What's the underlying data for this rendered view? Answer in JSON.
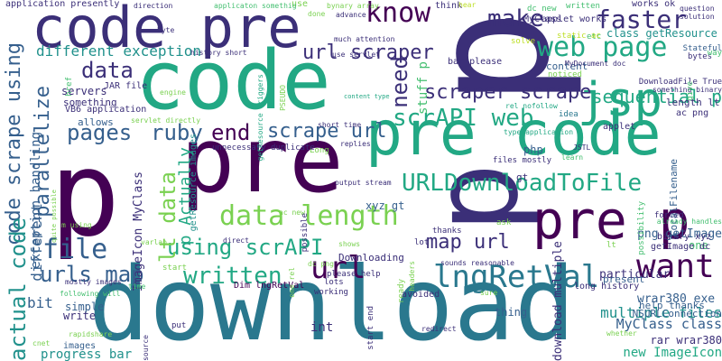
{
  "palette": {
    "dark_purple": "#440154",
    "indigo": "#3b2f78",
    "blue": "#355f8d",
    "teal": "#2a788e",
    "sea": "#21918c",
    "green": "#22a884",
    "leaf": "#44bf70",
    "lime": "#7ad151",
    "yellow": "#bddf26",
    "bright": "#fde725"
  },
  "words": [
    {
      "id": "download",
      "text": "download",
      "color": "teal"
    },
    {
      "id": "code",
      "text": "code",
      "color": "green"
    },
    {
      "id": "pre-1",
      "text": "pre",
      "color": "dark_purple"
    },
    {
      "id": "p-1",
      "text": "p",
      "color": "dark_purple"
    },
    {
      "id": "p-2",
      "text": "p",
      "color": "indigo"
    },
    {
      "id": "p-3",
      "text": "p",
      "color": "indigo"
    },
    {
      "id": "code-pre",
      "text": "code pre",
      "color": "indigo"
    },
    {
      "id": "pre-code",
      "text": "pre code",
      "color": "green"
    },
    {
      "id": "pre-p",
      "text": "pre p",
      "color": "dark_purple"
    },
    {
      "id": "jsp",
      "text": "jsp",
      "color": "green"
    },
    {
      "id": "want",
      "text": "want",
      "color": "dark_purple"
    },
    {
      "id": "web-page",
      "text": "web page",
      "color": "green"
    },
    {
      "id": "lngretval",
      "text": "lngRetVal",
      "color": "teal"
    },
    {
      "id": "urldownloadtofile",
      "text": "URLDownloadToFile",
      "color": "green"
    },
    {
      "id": "data-length",
      "text": "data length",
      "color": "lime"
    },
    {
      "id": "know",
      "text": "know",
      "color": "dark_purple"
    },
    {
      "id": "faster",
      "text": "faster",
      "color": "indigo"
    },
    {
      "id": "make",
      "text": "make",
      "color": "indigo"
    },
    {
      "id": "scrapi-web",
      "text": "scrAPI web",
      "color": "green"
    },
    {
      "id": "scraper-scrape",
      "text": "scraper scrape",
      "color": "indigo"
    },
    {
      "id": "url-scraper",
      "text": "url scraper",
      "color": "indigo"
    },
    {
      "id": "written",
      "text": "written",
      "color": "green"
    },
    {
      "id": "url",
      "text": "url",
      "color": "dark_purple"
    },
    {
      "id": "file",
      "text": "file",
      "color": "blue"
    },
    {
      "id": "pages",
      "text": "pages",
      "color": "blue"
    },
    {
      "id": "ruby",
      "text": "ruby",
      "color": "blue"
    },
    {
      "id": "end",
      "text": "end",
      "color": "dark_purple"
    },
    {
      "id": "scrape-url",
      "text": "scrape url",
      "color": "blue"
    },
    {
      "id": "data",
      "text": "data",
      "color": "indigo"
    },
    {
      "id": "using-scrapi",
      "text": "using scrAPI",
      "color": "green"
    },
    {
      "id": "urls-map",
      "text": "urls map",
      "color": "blue"
    },
    {
      "id": "map-url",
      "text": "map url",
      "color": "indigo"
    },
    {
      "id": "need",
      "text": "need",
      "color": "indigo"
    },
    {
      "id": "sequential-p",
      "text": "sequential p",
      "color": "green"
    },
    {
      "id": "different-exception",
      "text": "different exception",
      "color": "sea"
    },
    {
      "id": "code-scrape-using",
      "text": "code scrape using",
      "color": "blue"
    },
    {
      "id": "actual-code",
      "text": "actual code",
      "color": "sea"
    },
    {
      "id": "parallelize",
      "text": "parallelize",
      "color": "blue"
    },
    {
      "id": "lt-data",
      "text": "lt data",
      "color": "lime"
    },
    {
      "id": "p-actually",
      "text": "p Actually",
      "color": "green"
    },
    {
      "id": "stuff-p",
      "text": "stuff p",
      "color": "leaf"
    },
    {
      "id": "multiple-files",
      "text": "multiple files",
      "color": "sea"
    },
    {
      "id": "myclass-class",
      "text": "MyClass class",
      "color": "blue"
    },
    {
      "id": "new-imageicon",
      "text": "new ImageIcon",
      "color": "green"
    },
    {
      "id": "progress-bar",
      "text": "progress bar",
      "color": "sea"
    },
    {
      "id": "rar-wrar380",
      "text": "rar wrar380",
      "color": "indigo"
    },
    {
      "id": "wrar380-exe",
      "text": "wrar380 exe",
      "color": "blue"
    },
    {
      "id": "nsurlconnection",
      "text": "NSURLConnection",
      "color": "blue"
    },
    {
      "id": "help-thanks",
      "text": "help thanks",
      "color": "blue"
    },
    {
      "id": "png-getimage",
      "text": "png getImage",
      "color": "blue"
    },
    {
      "id": "length-lt",
      "text": "length lt",
      "color": "indigo"
    },
    {
      "id": "imageicon-myclass",
      "text": "ImageIcon MyClass",
      "color": "indigo"
    },
    {
      "id": "different",
      "text": "different",
      "color": "blue"
    },
    {
      "id": "bit",
      "text": "bit",
      "color": "blue"
    },
    {
      "id": "exception-handling",
      "text": "exception handling",
      "color": "blue"
    },
    {
      "id": "class-getresource",
      "text": "class getResource",
      "color": "sea"
    },
    {
      "id": "xyz-gt",
      "text": "xyz gt",
      "color": "blue"
    },
    {
      "id": "downloading",
      "text": "Downloading",
      "color": "indigo"
    },
    {
      "id": "dim-lngretval",
      "text": "Dim lngRetVal",
      "color": "dark_purple"
    },
    {
      "id": "download-multiple",
      "text": "download multiple",
      "color": "indigo"
    },
    {
      "id": "servers",
      "text": "servers",
      "color": "indigo"
    },
    {
      "id": "something",
      "text": "something",
      "color": "indigo"
    },
    {
      "id": "allows",
      "text": "allows",
      "color": "blue"
    },
    {
      "id": "write",
      "text": "write",
      "color": "indigo"
    },
    {
      "id": "simple",
      "text": "simple",
      "color": "blue"
    },
    {
      "id": "images",
      "text": "images",
      "color": "blue"
    },
    {
      "id": "php",
      "text": "php",
      "color": "blue"
    },
    {
      "id": "content",
      "text": "content",
      "color": "blue"
    },
    {
      "id": "thing",
      "text": "thing",
      "color": "blue"
    },
    {
      "id": "int",
      "text": "int",
      "color": "indigo"
    },
    {
      "id": "one",
      "text": "one",
      "color": "leaf"
    },
    {
      "id": "applet",
      "text": "applet",
      "color": "indigo"
    },
    {
      "id": "applet-works",
      "text": "applet works",
      "color": "indigo"
    },
    {
      "id": "works-ok",
      "text": "works ok",
      "color": "indigo"
    },
    {
      "id": "stateful",
      "text": "Stateful",
      "color": "blue"
    },
    {
      "id": "bytes",
      "text": "bytes",
      "color": "indigo"
    },
    {
      "id": "ac-png",
      "text": "ac png",
      "color": "indigo"
    },
    {
      "id": "particular",
      "text": "particular",
      "color": "indigo"
    },
    {
      "id": "present",
      "text": "present",
      "color": "blue"
    },
    {
      "id": "long-history",
      "text": "long history",
      "color": "indigo"
    },
    {
      "id": "jar-file",
      "text": "JAR file",
      "color": "indigo"
    },
    {
      "id": "vb6-application",
      "text": "VB6 application",
      "color": "indigo"
    },
    {
      "id": "getresource-images",
      "text": "getResource images",
      "color": "sea"
    },
    {
      "id": "application-presently",
      "text": "application presently",
      "color": "indigo"
    },
    {
      "id": "myclass",
      "text": "MyClass",
      "color": "indigo"
    },
    {
      "id": "getimage-dc",
      "text": "getImage dc",
      "color": "indigo"
    },
    {
      "id": "binary-xyz",
      "text": "binary xyz",
      "color": "indigo"
    },
    {
      "id": "gt",
      "text": "gt",
      "color": "indigo"
    },
    {
      "id": "idea",
      "text": "idea",
      "color": "teal"
    },
    {
      "id": "localfilename",
      "text": "LocalFilename",
      "color": "blue"
    },
    {
      "id": "downloadfile-true",
      "text": "DownloadFile True",
      "color": "indigo"
    },
    {
      "id": "something-binary",
      "text": "something binary",
      "color": "indigo"
    },
    {
      "id": "already-handles",
      "text": "already handles",
      "color": "leaf"
    },
    {
      "id": "forced",
      "text": "forced",
      "color": "indigo"
    },
    {
      "id": "possibility",
      "text": "possibility",
      "color": "leaf"
    },
    {
      "id": "question-solution",
      "text": "question\nsolution",
      "color": "indigo"
    },
    {
      "id": "way",
      "text": "way",
      "color": "leaf"
    },
    {
      "id": "give",
      "text": "give",
      "color": "leaf"
    },
    {
      "id": "w-etc",
      "text": "etc",
      "color": "leaf"
    },
    {
      "id": "static-ac",
      "text": "static ac",
      "color": "yellow"
    },
    {
      "id": "bar-please",
      "text": "bar please",
      "color": "indigo"
    },
    {
      "id": "mydocument-doc",
      "text": "MyDocument doc",
      "color": "indigo"
    },
    {
      "id": "noticed",
      "text": "noticed",
      "color": "lime"
    },
    {
      "id": "solve",
      "text": "solve",
      "color": "yellow"
    },
    {
      "id": "much-attention",
      "text": "much attention",
      "color": "indigo"
    },
    {
      "id": "use-servlet",
      "text": "use servlet",
      "color": "indigo"
    },
    {
      "id": "history-short",
      "text": "history short",
      "color": "indigo"
    },
    {
      "id": "bynary-array",
      "text": "bynary array",
      "color": "lime"
    },
    {
      "id": "advance",
      "text": "advance",
      "color": "indigo"
    },
    {
      "id": "dc-new",
      "text": "dc new",
      "color": "leaf"
    },
    {
      "id": "written-small",
      "text": "written",
      "color": "leaf"
    },
    {
      "id": "think",
      "text": "think",
      "color": "indigo"
    },
    {
      "id": "hear",
      "text": "hear",
      "color": "yellow"
    },
    {
      "id": "done",
      "text": "done",
      "color": "lime"
    },
    {
      "id": "use",
      "text": "use",
      "color": "lime"
    },
    {
      "id": "applicaton-somethig",
      "text": "applicaton somethig",
      "color": "leaf"
    },
    {
      "id": "direction",
      "text": "direction",
      "color": "indigo"
    },
    {
      "id": "byte",
      "text": "byte",
      "color": "indigo"
    },
    {
      "id": "pseudo",
      "text": "PSEUDO",
      "color": "lime"
    },
    {
      "id": "getresource-triggers",
      "text": "getResource triggers",
      "color": "green"
    },
    {
      "id": "please-help",
      "text": "please help",
      "color": "indigo"
    },
    {
      "id": "lots",
      "text": "lots",
      "color": "indigo"
    },
    {
      "id": "content-type",
      "text": "content type",
      "color": "green"
    },
    {
      "id": "rel-nofollow",
      "text": "rel nofollow",
      "color": "green"
    },
    {
      "id": "type-application",
      "text": "type application",
      "color": "green"
    },
    {
      "id": "jstl",
      "text": "JSTL",
      "color": "indigo"
    },
    {
      "id": "learn",
      "text": "learn",
      "color": "leaf"
    },
    {
      "id": "files-mostly",
      "text": "files mostly",
      "color": "indigo"
    },
    {
      "id": "short-time",
      "text": "short time",
      "color": "indigo"
    },
    {
      "id": "replies",
      "text": "replies",
      "color": "indigo"
    },
    {
      "id": "long",
      "text": "Long",
      "color": "lime"
    },
    {
      "id": "output-stream",
      "text": "output stream",
      "color": "indigo"
    },
    {
      "id": "engine",
      "text": "engine",
      "color": "lime"
    },
    {
      "id": "servlet-directly",
      "text": "servlet directly",
      "color": "lime"
    },
    {
      "id": "href",
      "text": "href",
      "color": "leaf"
    },
    {
      "id": "unnecessary-duplicate",
      "text": "unnecessary duplicate",
      "color": "indigo"
    },
    {
      "id": "ac-new",
      "text": "ac new",
      "color": "lime"
    },
    {
      "id": "possible",
      "text": "possible",
      "color": "indigo"
    },
    {
      "id": "dc-png",
      "text": "dc png",
      "color": "lime"
    },
    {
      "id": "ask",
      "text": "ask",
      "color": "lime"
    },
    {
      "id": "thanks",
      "text": "thanks",
      "color": "indigo"
    },
    {
      "id": "lot",
      "text": "lot",
      "color": "indigo"
    },
    {
      "id": "shows",
      "text": "shows",
      "color": "lime"
    },
    {
      "id": "sounds-reasonable",
      "text": "sounds reasonable",
      "color": "indigo"
    },
    {
      "id": "headers",
      "text": "headers",
      "color": "lime"
    },
    {
      "id": "ready",
      "text": "ready",
      "color": "lime"
    },
    {
      "id": "avoided",
      "text": "avoided",
      "color": "indigo"
    },
    {
      "id": "start-end",
      "text": "start end",
      "color": "indigo"
    },
    {
      "id": "sure",
      "text": "sure",
      "color": "lime"
    },
    {
      "id": "redirect",
      "text": "redirect",
      "color": "indigo"
    },
    {
      "id": "working",
      "text": "working",
      "color": "indigo"
    },
    {
      "id": "one-rel",
      "text": "one rel",
      "color": "lime"
    },
    {
      "id": "direct",
      "text": "direct",
      "color": "indigo"
    },
    {
      "id": "m-using",
      "text": "m using",
      "color": "lime"
    },
    {
      "id": "varlab",
      "text": "varlab",
      "color": "lime"
    },
    {
      "id": "start",
      "text": "start",
      "color": "lime"
    },
    {
      "id": "time",
      "text": "time",
      "color": "leaf"
    },
    {
      "id": "put",
      "text": "put",
      "color": "indigo"
    },
    {
      "id": "source",
      "text": "source",
      "color": "indigo"
    },
    {
      "id": "quite-possible",
      "text": "quite possible",
      "color": "lime"
    },
    {
      "id": "mostly-images",
      "text": "mostly images",
      "color": "indigo"
    },
    {
      "id": "following-will",
      "text": "following will",
      "color": "leaf"
    },
    {
      "id": "rapidshare",
      "text": "rapidshare",
      "color": "lime"
    },
    {
      "id": "cnet",
      "text": "cnet",
      "color": "lime"
    },
    {
      "id": "whether",
      "text": "whether",
      "color": "lime"
    },
    {
      "id": "length-lt-2",
      "text": "lt",
      "color": "lime"
    }
  ]
}
